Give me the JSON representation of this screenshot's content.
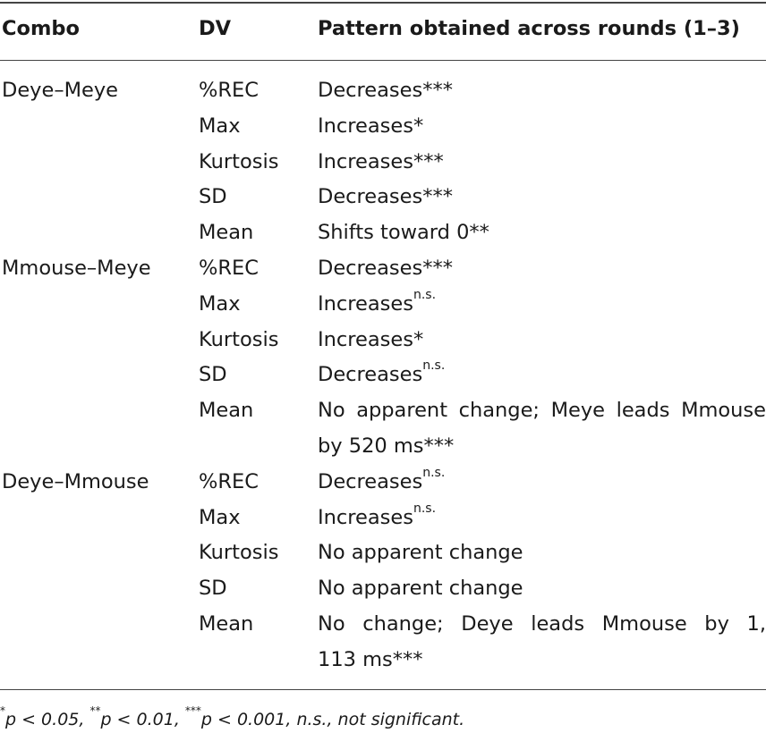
{
  "table": {
    "headers": {
      "combo": "Combo",
      "dv": "DV",
      "pattern": "Pattern obtained across rounds (1–3)"
    },
    "rows": [
      {
        "combo": "Deye–Meye",
        "dv": "%REC",
        "pattern": "Decreases",
        "sig": "***"
      },
      {
        "combo": "",
        "dv": "Max",
        "pattern": "Increases",
        "sig": "*"
      },
      {
        "combo": "",
        "dv": "Kurtosis",
        "pattern": "Increases",
        "sig": "***"
      },
      {
        "combo": "",
        "dv": "SD",
        "pattern": "Decreases",
        "sig": "***"
      },
      {
        "combo": "",
        "dv": "Mean",
        "pattern": "Shifts toward 0",
        "sig": "**"
      },
      {
        "combo": "Mmouse–Meye",
        "dv": "%REC",
        "pattern": "Decreases",
        "sig": "***"
      },
      {
        "combo": "",
        "dv": "Max",
        "pattern": "Increases",
        "sig": "n.s."
      },
      {
        "combo": "",
        "dv": "Kurtosis",
        "pattern": "Increases",
        "sig": "*"
      },
      {
        "combo": "",
        "dv": "SD",
        "pattern": "Decreases",
        "sig": "n.s."
      },
      {
        "combo": "",
        "dv": "Mean",
        "pattern": "No apparent change; Meye leads Mmouse",
        "sig": ""
      },
      {
        "combo": "",
        "dv": "",
        "pattern": "by 520 ms",
        "sig": "***"
      },
      {
        "combo": "Deye–Mmouse",
        "dv": "%REC",
        "pattern": "Decreases",
        "sig": "n.s."
      },
      {
        "combo": "",
        "dv": "Max",
        "pattern": "Increases",
        "sig": "n.s."
      },
      {
        "combo": "",
        "dv": "Kurtosis",
        "pattern": "No apparent change",
        "sig": ""
      },
      {
        "combo": "",
        "dv": "SD",
        "pattern": "No apparent change",
        "sig": ""
      },
      {
        "combo": "",
        "dv": "Mean",
        "pattern": "No change; Deye leads Mmouse by 1,",
        "sig": ""
      },
      {
        "combo": "",
        "dv": "",
        "pattern": "113 ms",
        "sig": "***"
      }
    ]
  },
  "footnote": {
    "m1": "*",
    "t1": "p < 0.05, ",
    "m2": "**",
    "t2": "p < 0.01, ",
    "m3": "***",
    "t3": "p < 0.001, n.s., not significant."
  }
}
